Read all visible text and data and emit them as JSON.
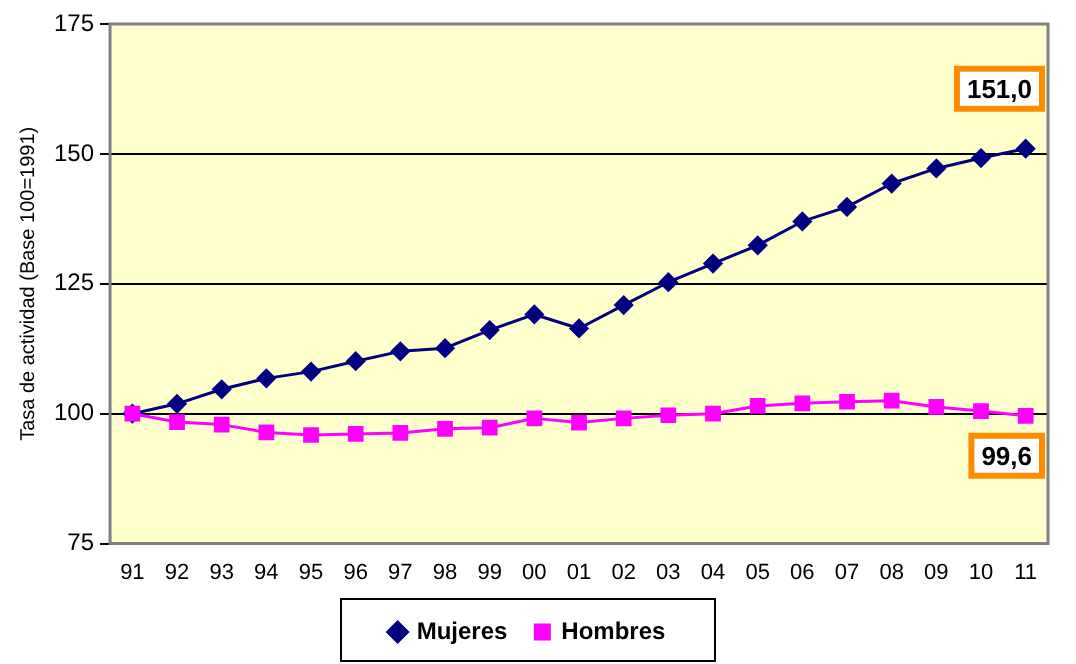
{
  "chart_data": {
    "type": "line",
    "ylabel": "Tasa de actividad (Base 100=1991)",
    "categories": [
      "91",
      "92",
      "93",
      "94",
      "95",
      "96",
      "97",
      "98",
      "99",
      "00",
      "01",
      "02",
      "03",
      "04",
      "05",
      "06",
      "07",
      "08",
      "09",
      "10",
      "11"
    ],
    "series": [
      {
        "name": "Mujeres",
        "color": "#000080",
        "marker": "diamond",
        "values": [
          100,
          101.9,
          104.7,
          106.8,
          108.1,
          110.1,
          112.0,
          112.6,
          116.1,
          119.1,
          116.4,
          120.9,
          125.3,
          128.9,
          132.4,
          137.0,
          139.8,
          144.3,
          147.2,
          149.2,
          151.0
        ]
      },
      {
        "name": "Hombres",
        "color": "#ff00ff",
        "marker": "square",
        "values": [
          100,
          98.4,
          97.9,
          96.4,
          95.9,
          96.1,
          96.3,
          97.1,
          97.3,
          99.1,
          98.3,
          99.1,
          99.7,
          100.0,
          101.5,
          102.0,
          102.3,
          102.5,
          101.3,
          100.5,
          99.6
        ]
      }
    ],
    "ylim": [
      75,
      175
    ],
    "yticks": [
      75,
      100,
      125,
      150,
      175
    ],
    "grid": "y",
    "legend": "bottom",
    "annotations": [
      {
        "text": "151,0",
        "x": "11",
        "y": 151.0
      },
      {
        "text": "99,6",
        "x": "11",
        "y": 99.6
      }
    ]
  }
}
